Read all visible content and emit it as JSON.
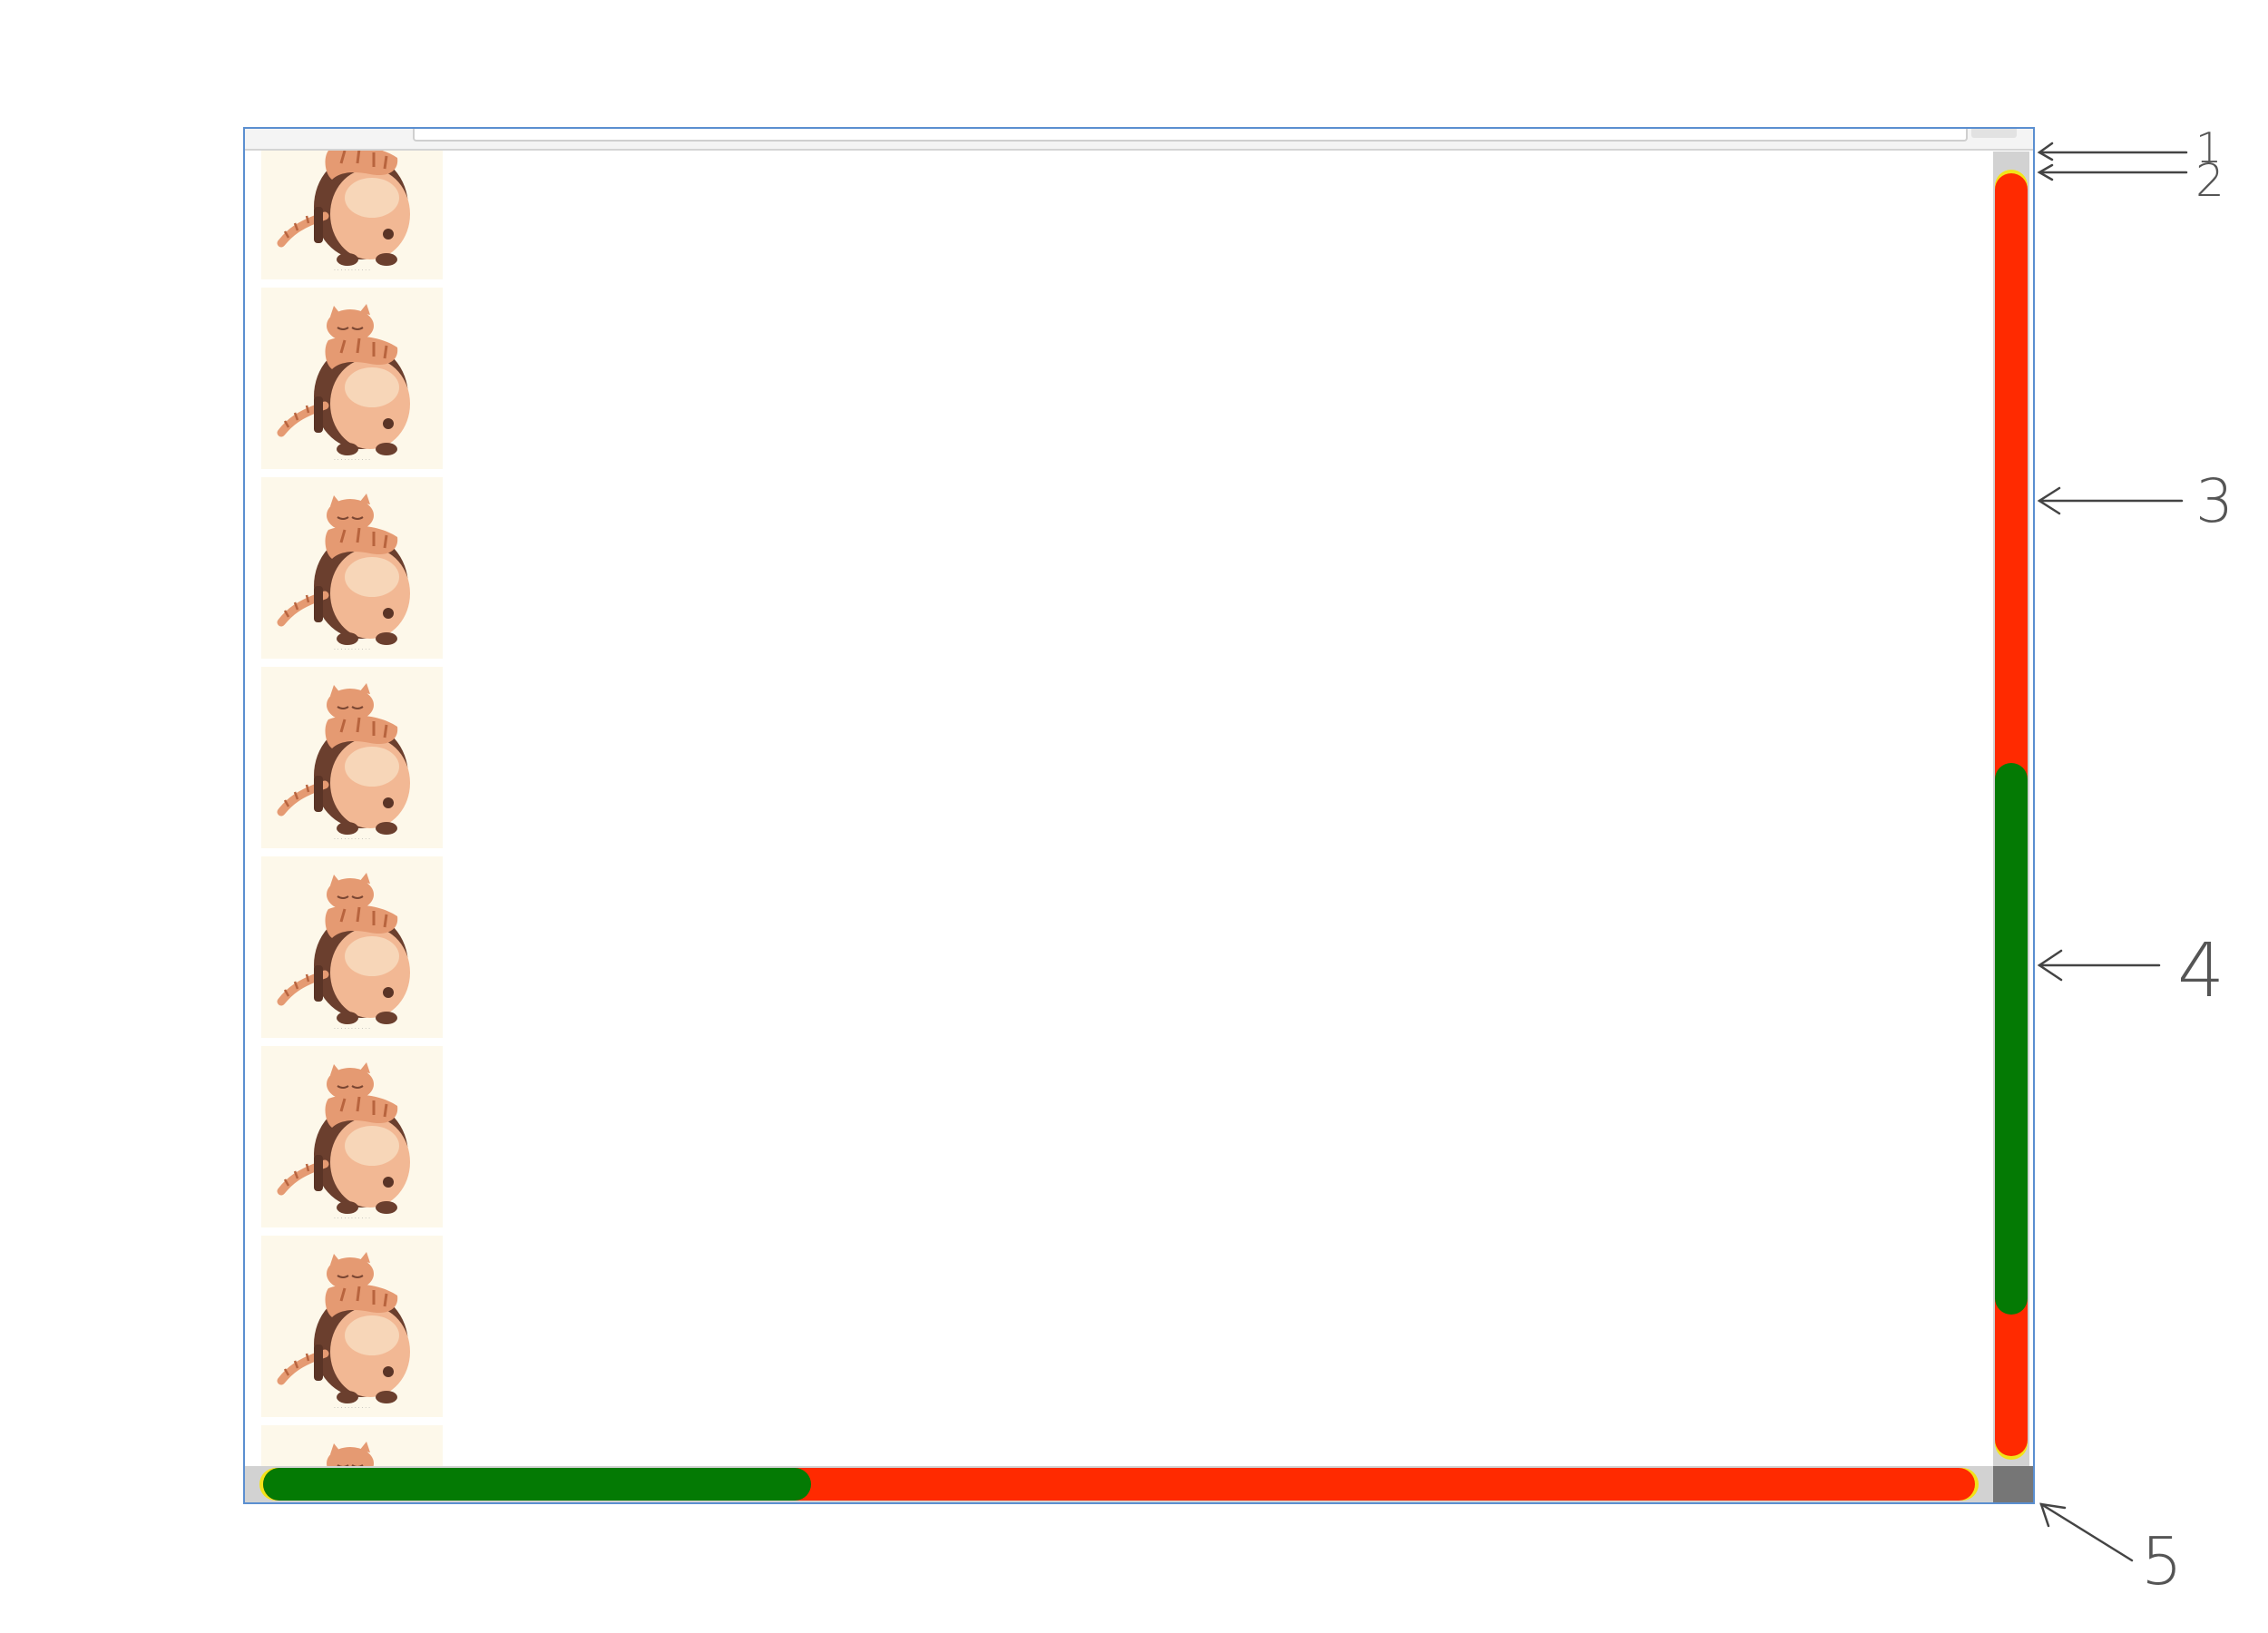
{
  "window": {
    "thumbnail_count": 8,
    "thumbnail_alt": "cat-hugging-panda-illustration"
  },
  "scrollbar_colors": {
    "track": "#ff2a00",
    "thumb": "#047a04",
    "track_outline": "#f2e31a",
    "gutter": "#d2d2d2",
    "corner": "#767676"
  },
  "scroll": {
    "vertical_thumb_start_fraction": 0.46,
    "vertical_thumb_size_fraction": 0.43,
    "horizontal_thumb_start_fraction": 0.0,
    "horizontal_thumb_size_fraction": 0.32
  },
  "annotations": [
    {
      "id": "1",
      "label": "1"
    },
    {
      "id": "2",
      "label": "2"
    },
    {
      "id": "3",
      "label": "3"
    },
    {
      "id": "4",
      "label": "4"
    },
    {
      "id": "5",
      "label": "5"
    }
  ]
}
